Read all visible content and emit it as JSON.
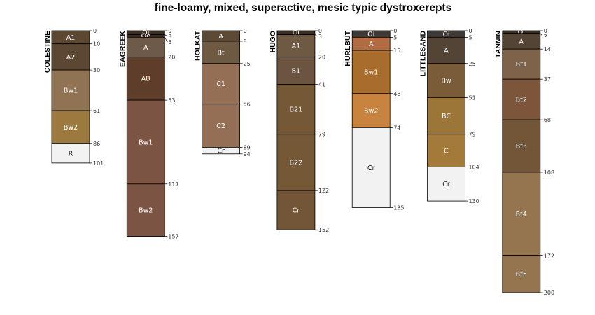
{
  "chart_data": {
    "type": "soil-profile-sketch",
    "title": "fine-loamy, mixed, superactive, mesic typic dystroxerepts",
    "max_depth": 200,
    "profiles": [
      {
        "name": "COLESTINE",
        "horizons": [
          {
            "name": "A1",
            "top": 0,
            "bottom": 10,
            "color": "#5c4832"
          },
          {
            "name": "A2",
            "top": 10,
            "bottom": 30,
            "color": "#5c4832"
          },
          {
            "name": "Bw1",
            "top": 30,
            "bottom": 61,
            "color": "#8f7352"
          },
          {
            "name": "Bw2",
            "top": 61,
            "bottom": 86,
            "color": "#9c7a3f"
          },
          {
            "name": "R",
            "top": 86,
            "bottom": 101,
            "color": "#f2f2f2"
          }
        ]
      },
      {
        "name": "EAGREEK",
        "horizons": [
          {
            "name": "Oi",
            "top": 0,
            "bottom": 3,
            "color": "#3a2e22"
          },
          {
            "name": "Oe",
            "top": 3,
            "bottom": 5,
            "color": "#3a2e22"
          },
          {
            "name": "A",
            "top": 5,
            "bottom": 20,
            "color": "#6e5a48"
          },
          {
            "name": "AB",
            "top": 20,
            "bottom": 53,
            "color": "#5e3d2a"
          },
          {
            "name": "Bw1",
            "top": 53,
            "bottom": 117,
            "color": "#7c5444"
          },
          {
            "name": "Bw2",
            "top": 117,
            "bottom": 157,
            "color": "#7c5444"
          }
        ]
      },
      {
        "name": "HOLKAT",
        "horizons": [
          {
            "name": "A",
            "top": 0,
            "bottom": 8,
            "color": "#5c4a35"
          },
          {
            "name": "Bt",
            "top": 8,
            "bottom": 25,
            "color": "#6e5a43"
          },
          {
            "name": "C1",
            "top": 25,
            "bottom": 56,
            "color": "#956f55"
          },
          {
            "name": "C2",
            "top": 56,
            "bottom": 89,
            "color": "#956f55"
          },
          {
            "name": "Cr",
            "top": 89,
            "bottom": 94,
            "color": "#f2f2f2"
          }
        ]
      },
      {
        "name": "HUGO",
        "horizons": [
          {
            "name": "Oi",
            "top": 0,
            "bottom": 3,
            "color": "#3a2e22"
          },
          {
            "name": "A1",
            "top": 3,
            "bottom": 20,
            "color": "#6e5a43"
          },
          {
            "name": "B1",
            "top": 20,
            "bottom": 41,
            "color": "#6b5440"
          },
          {
            "name": "B21",
            "top": 41,
            "bottom": 79,
            "color": "#755836"
          },
          {
            "name": "B22",
            "top": 79,
            "bottom": 122,
            "color": "#755836"
          },
          {
            "name": "Cr",
            "top": 122,
            "bottom": 152,
            "color": "#735637"
          }
        ]
      },
      {
        "name": "HURLBUT",
        "horizons": [
          {
            "name": "Oi",
            "top": 0,
            "bottom": 5,
            "color": "#3f3a35"
          },
          {
            "name": "A",
            "top": 5,
            "bottom": 15,
            "color": "#b06c42"
          },
          {
            "name": "Bw1",
            "top": 15,
            "bottom": 48,
            "color": "#a86d2d"
          },
          {
            "name": "Bw2",
            "top": 48,
            "bottom": 74,
            "color": "#c8843f"
          },
          {
            "name": "Cr",
            "top": 74,
            "bottom": 135,
            "color": "#f2f2f2"
          }
        ]
      },
      {
        "name": "LITTLESAND",
        "horizons": [
          {
            "name": "Oi",
            "top": 0,
            "bottom": 5,
            "color": "#3f3a35"
          },
          {
            "name": "A",
            "top": 5,
            "bottom": 25,
            "color": "#544435"
          },
          {
            "name": "Bw",
            "top": 25,
            "bottom": 51,
            "color": "#7a5c38"
          },
          {
            "name": "BC",
            "top": 51,
            "bottom": 79,
            "color": "#9c7538"
          },
          {
            "name": "C",
            "top": 79,
            "bottom": 104,
            "color": "#a47a3a"
          },
          {
            "name": "Cr",
            "top": 104,
            "bottom": 130,
            "color": "#f2f2f2"
          }
        ]
      },
      {
        "name": "TANNIN",
        "horizons": [
          {
            "name": "Oi",
            "top": 0,
            "bottom": 2,
            "color": "#3a2e22"
          },
          {
            "name": "A",
            "top": 2,
            "bottom": 14,
            "color": "#544435"
          },
          {
            "name": "Bt1",
            "top": 14,
            "bottom": 37,
            "color": "#7e624a"
          },
          {
            "name": "Bt2",
            "top": 37,
            "bottom": 68,
            "color": "#7c553a"
          },
          {
            "name": "Bt3",
            "top": 68,
            "bottom": 108,
            "color": "#735637"
          },
          {
            "name": "Bt4",
            "top": 108,
            "bottom": 172,
            "color": "#94754f"
          },
          {
            "name": "Bt5",
            "top": 172,
            "bottom": 200,
            "color": "#94754f"
          }
        ]
      }
    ]
  }
}
